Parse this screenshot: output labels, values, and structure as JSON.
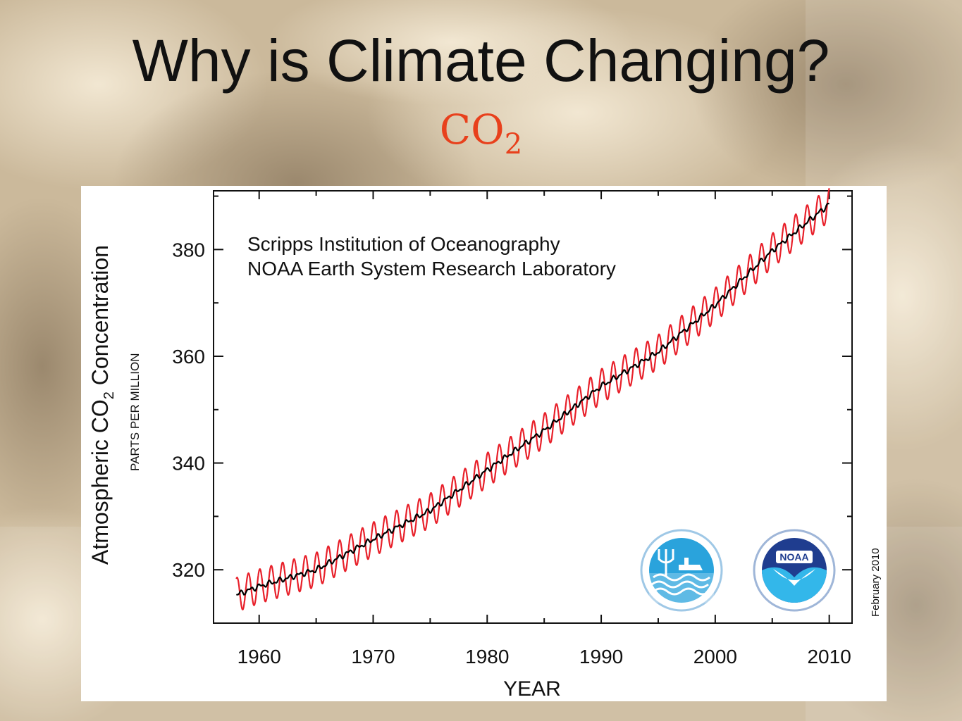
{
  "slide": {
    "title": "Why is Climate Changing?",
    "subtitle_main": "CO",
    "subtitle_sub": "2"
  },
  "colors": {
    "subtitle": "#e8401c",
    "monthly_series": "#e8202a",
    "annual_series": "#000000"
  },
  "chart_data": {
    "type": "line",
    "annotation_lines": [
      "Scripps Institution of Oceanography",
      "NOAA Earth System Research Laboratory"
    ],
    "ylabel_main": "Atmospheric CO",
    "ylabel_sub": "2",
    "ylabel_tail": " Concentration",
    "ylabel_units": "PARTS PER MILLION",
    "xlabel": "YEAR",
    "date_note": "February 2010",
    "xlim": [
      1956,
      2012
    ],
    "ylim": [
      310,
      391
    ],
    "x_ticks": [
      1960,
      1970,
      1980,
      1990,
      2000,
      2010
    ],
    "y_ticks": [
      320,
      340,
      360,
      380
    ],
    "x_tick_labels": [
      "1960",
      "1970",
      "1980",
      "1990",
      "2000",
      "2010"
    ],
    "y_tick_labels": [
      "320",
      "340",
      "360",
      "380"
    ],
    "logos": [
      "scripps-seal-icon",
      "noaa-logo-icon"
    ],
    "series": [
      {
        "style": "seasonal",
        "x": [
          1958,
          1960,
          1965,
          1970,
          1975,
          1980,
          1985,
          1990,
          1995,
          2000,
          2005,
          2010
        ],
        "y": [
          315.3,
          316.9,
          320.0,
          325.7,
          331.1,
          338.7,
          346.1,
          354.4,
          360.8,
          369.6,
          379.8,
          388.5
        ],
        "seasonal_amplitude": 3.2
      },
      {
        "style": "trend",
        "x": [
          1958,
          1960,
          1965,
          1970,
          1975,
          1980,
          1985,
          1990,
          1995,
          2000,
          2005,
          2010
        ],
        "y": [
          315.3,
          316.9,
          320.0,
          325.7,
          331.1,
          338.7,
          346.1,
          354.4,
          360.8,
          369.6,
          379.8,
          388.5
        ]
      }
    ]
  }
}
